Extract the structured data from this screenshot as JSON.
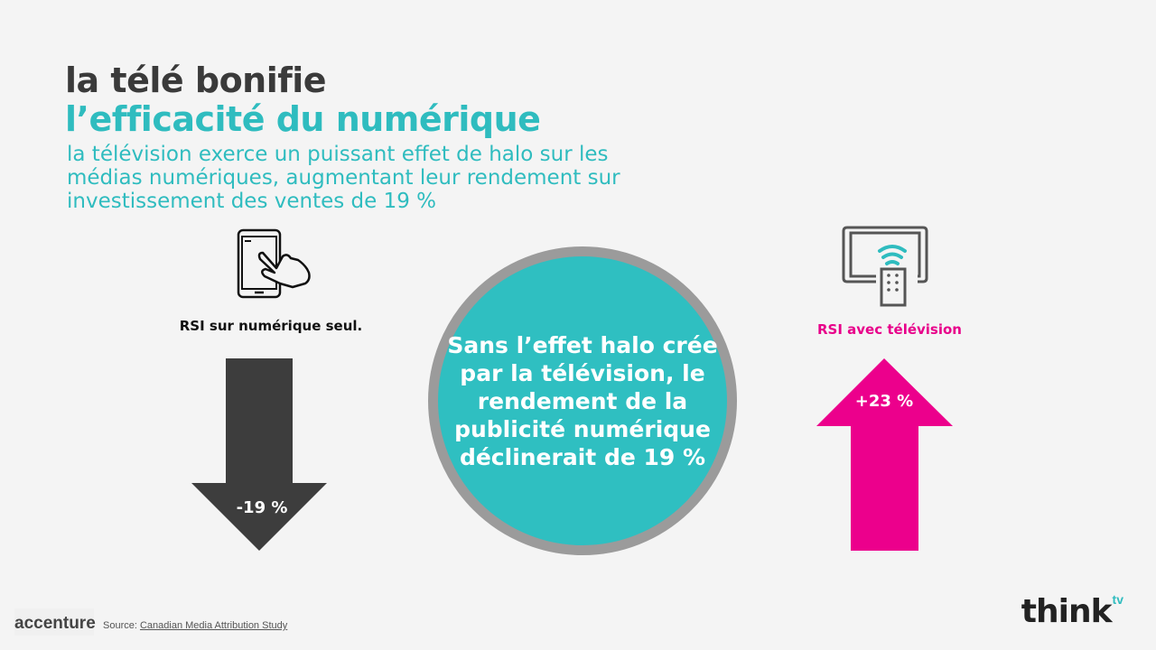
{
  "title_line1": "la télé bonifie",
  "title_line2": "l’efficacité du numérique",
  "subtitle": "la télévision exerce un puissant effet de halo sur les médias numériques, augmentant leur rendement sur investissement des ventes de 19 %",
  "left": {
    "label": "RSI sur numérique seul.",
    "value": "-19 %",
    "icon": "touch-phone-icon",
    "color": "#3d3d3d"
  },
  "right": {
    "label": "RSI avec télévision",
    "value": "+23 %",
    "icon": "tv-remote-icon",
    "color": "#ec008c"
  },
  "circle_text": "Sans l’effet halo crée par la télévision, le rendement de la publicité numérique déclinerait de 19 %",
  "footer": {
    "accenture": "accenture",
    "source_prefix": "Source: ",
    "source_link": "Canadian Media Attribution Study",
    "think": "think",
    "tv": "tv"
  },
  "colors": {
    "teal": "#2fbcbf",
    "magenta": "#ec008c",
    "dark": "#3d3d3d"
  }
}
